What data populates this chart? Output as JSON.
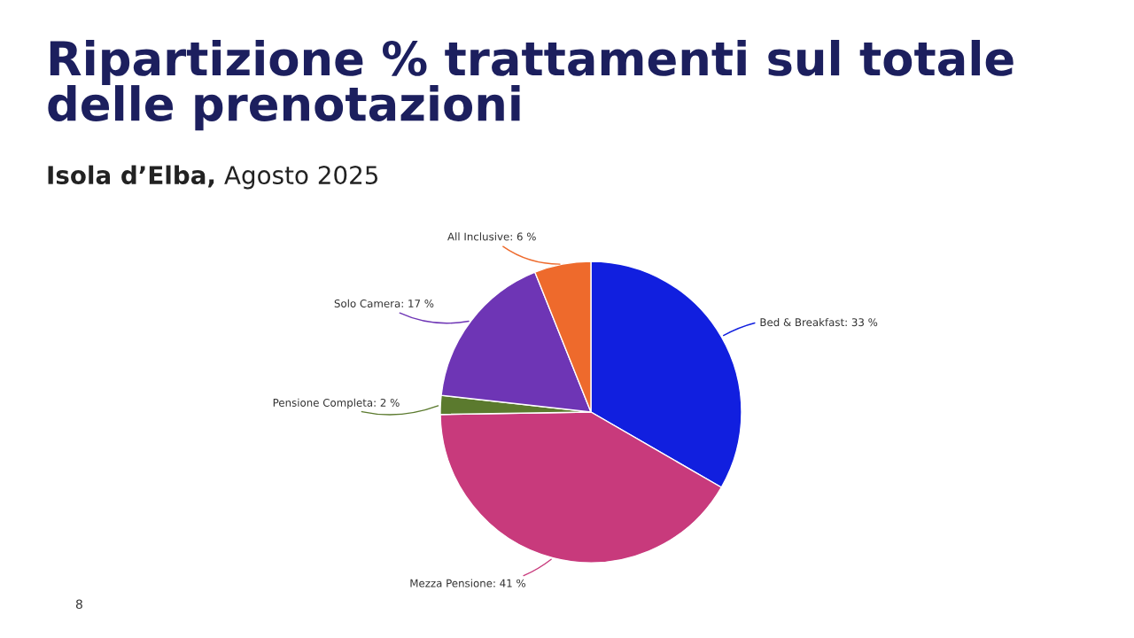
{
  "chart_data": {
    "type": "pie",
    "title": "Ripartizione % trattamenti sul totale delle prenotazioni",
    "subtitle": "Isola d’Elba, Agosto 2025",
    "categories": [
      "Bed & Breakfast",
      "Mezza Pensione",
      "Pensione Completa",
      "Solo Camera",
      "All Inclusive"
    ],
    "values": [
      33,
      41,
      2,
      17,
      6
    ],
    "value_labels": [
      "33 %",
      "41 %",
      "2 %",
      "17 %",
      "6 %"
    ],
    "colors": [
      "#111fdf",
      "#c83a7c",
      "#5b7a2e",
      "#6e35b5",
      "#ee6a2c"
    ],
    "annotations": [
      "8"
    ]
  }
}
